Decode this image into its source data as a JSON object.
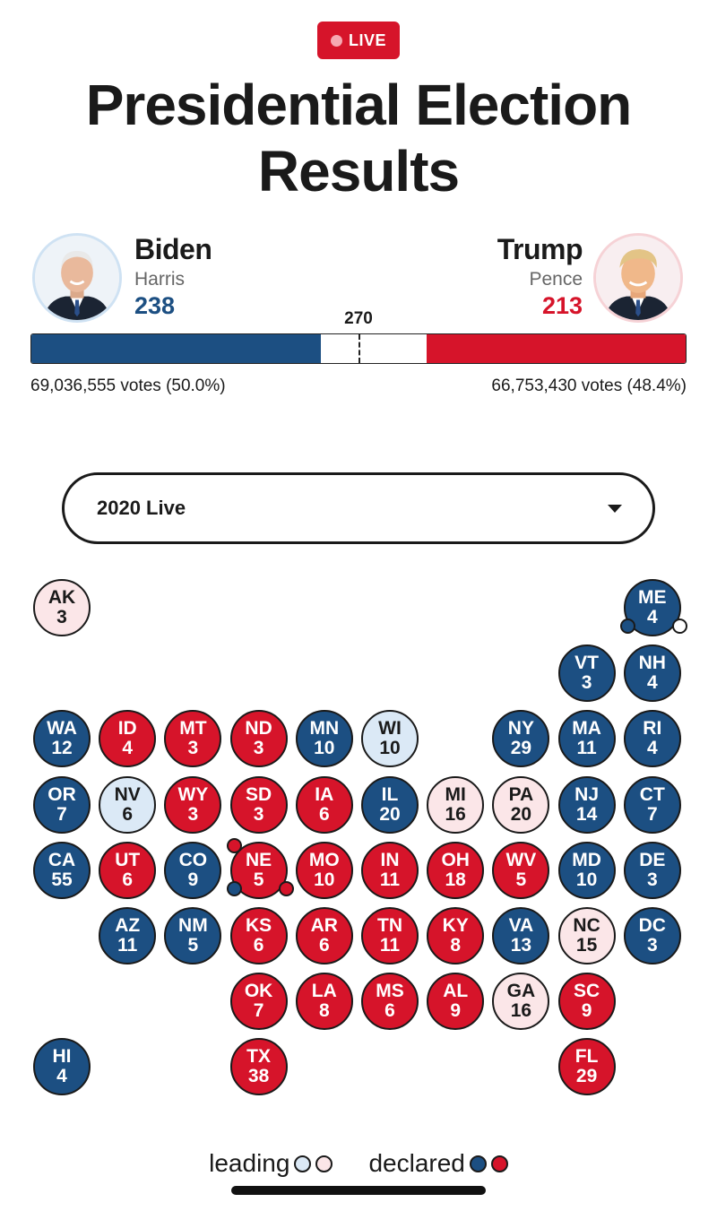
{
  "header": {
    "live_label": "LIVE",
    "title": "Presidential Election Results"
  },
  "candidates": {
    "left": {
      "name": "Biden",
      "running_mate": "Harris",
      "electoral_votes": "238",
      "popular_vote": "69,036,555 votes (50.0%)",
      "color": "#1c4f82"
    },
    "right": {
      "name": "Trump",
      "running_mate": "Pence",
      "electoral_votes": "213",
      "popular_vote": "66,753,430 votes (48.4%)",
      "color": "#d6142a"
    }
  },
  "electoral_bar": {
    "threshold_label": "270",
    "total_votes": 538,
    "left_value": 238,
    "right_value": 213
  },
  "year_select": {
    "selected": "2020 Live"
  },
  "colors": {
    "declared_blue": "#1c4f82",
    "declared_red": "#d6142a",
    "leading_blue": "#dbe9f6",
    "leading_red": "#fbe6e8"
  },
  "states": [
    {
      "abbr": "AK",
      "ev": "3",
      "status": "lightred",
      "row": 0,
      "col": 0
    },
    {
      "abbr": "ME",
      "ev": "4",
      "status": "blue",
      "row": 0,
      "col": 9,
      "split": [
        "blue",
        "white"
      ]
    },
    {
      "abbr": "VT",
      "ev": "3",
      "status": "blue",
      "row": 1,
      "col": 8
    },
    {
      "abbr": "NH",
      "ev": "4",
      "status": "blue",
      "row": 1,
      "col": 9
    },
    {
      "abbr": "WA",
      "ev": "12",
      "status": "blue",
      "row": 2,
      "col": 0
    },
    {
      "abbr": "ID",
      "ev": "4",
      "status": "red",
      "row": 2,
      "col": 1
    },
    {
      "abbr": "MT",
      "ev": "3",
      "status": "red",
      "row": 2,
      "col": 2
    },
    {
      "abbr": "ND",
      "ev": "3",
      "status": "red",
      "row": 2,
      "col": 3
    },
    {
      "abbr": "MN",
      "ev": "10",
      "status": "blue",
      "row": 2,
      "col": 4
    },
    {
      "abbr": "WI",
      "ev": "10",
      "status": "lightblue",
      "row": 2,
      "col": 5
    },
    {
      "abbr": "NY",
      "ev": "29",
      "status": "blue",
      "row": 2,
      "col": 7
    },
    {
      "abbr": "MA",
      "ev": "11",
      "status": "blue",
      "row": 2,
      "col": 8
    },
    {
      "abbr": "RI",
      "ev": "4",
      "status": "blue",
      "row": 2,
      "col": 9
    },
    {
      "abbr": "OR",
      "ev": "7",
      "status": "blue",
      "row": 3,
      "col": 0
    },
    {
      "abbr": "NV",
      "ev": "6",
      "status": "lightblue",
      "row": 3,
      "col": 1
    },
    {
      "abbr": "WY",
      "ev": "3",
      "status": "red",
      "row": 3,
      "col": 2
    },
    {
      "abbr": "SD",
      "ev": "3",
      "status": "red",
      "row": 3,
      "col": 3
    },
    {
      "abbr": "IA",
      "ev": "6",
      "status": "red",
      "row": 3,
      "col": 4
    },
    {
      "abbr": "IL",
      "ev": "20",
      "status": "blue",
      "row": 3,
      "col": 5
    },
    {
      "abbr": "MI",
      "ev": "16",
      "status": "lightred",
      "row": 3,
      "col": 6
    },
    {
      "abbr": "PA",
      "ev": "20",
      "status": "lightred",
      "row": 3,
      "col": 7
    },
    {
      "abbr": "NJ",
      "ev": "14",
      "status": "blue",
      "row": 3,
      "col": 8
    },
    {
      "abbr": "CT",
      "ev": "7",
      "status": "blue",
      "row": 3,
      "col": 9
    },
    {
      "abbr": "CA",
      "ev": "55",
      "status": "blue",
      "row": 4,
      "col": 0
    },
    {
      "abbr": "UT",
      "ev": "6",
      "status": "red",
      "row": 4,
      "col": 1
    },
    {
      "abbr": "CO",
      "ev": "9",
      "status": "blue",
      "row": 4,
      "col": 2
    },
    {
      "abbr": "NE",
      "ev": "5",
      "status": "red",
      "row": 4,
      "col": 3,
      "split": [
        "red",
        "blue",
        "red"
      ]
    },
    {
      "abbr": "MO",
      "ev": "10",
      "status": "red",
      "row": 4,
      "col": 4
    },
    {
      "abbr": "IN",
      "ev": "11",
      "status": "red",
      "row": 4,
      "col": 5
    },
    {
      "abbr": "OH",
      "ev": "18",
      "status": "red",
      "row": 4,
      "col": 6
    },
    {
      "abbr": "WV",
      "ev": "5",
      "status": "red",
      "row": 4,
      "col": 7
    },
    {
      "abbr": "MD",
      "ev": "10",
      "status": "blue",
      "row": 4,
      "col": 8
    },
    {
      "abbr": "DE",
      "ev": "3",
      "status": "blue",
      "row": 4,
      "col": 9
    },
    {
      "abbr": "AZ",
      "ev": "11",
      "status": "blue",
      "row": 5,
      "col": 1
    },
    {
      "abbr": "NM",
      "ev": "5",
      "status": "blue",
      "row": 5,
      "col": 2
    },
    {
      "abbr": "KS",
      "ev": "6",
      "status": "red",
      "row": 5,
      "col": 3
    },
    {
      "abbr": "AR",
      "ev": "6",
      "status": "red",
      "row": 5,
      "col": 4
    },
    {
      "abbr": "TN",
      "ev": "11",
      "status": "red",
      "row": 5,
      "col": 5
    },
    {
      "abbr": "KY",
      "ev": "8",
      "status": "red",
      "row": 5,
      "col": 6
    },
    {
      "abbr": "VA",
      "ev": "13",
      "status": "blue",
      "row": 5,
      "col": 7
    },
    {
      "abbr": "NC",
      "ev": "15",
      "status": "lightred",
      "row": 5,
      "col": 8
    },
    {
      "abbr": "DC",
      "ev": "3",
      "status": "blue",
      "row": 5,
      "col": 9
    },
    {
      "abbr": "OK",
      "ev": "7",
      "status": "red",
      "row": 6,
      "col": 3
    },
    {
      "abbr": "LA",
      "ev": "8",
      "status": "red",
      "row": 6,
      "col": 4
    },
    {
      "abbr": "MS",
      "ev": "6",
      "status": "red",
      "row": 6,
      "col": 5
    },
    {
      "abbr": "AL",
      "ev": "9",
      "status": "red",
      "row": 6,
      "col": 6
    },
    {
      "abbr": "GA",
      "ev": "16",
      "status": "lightred",
      "row": 6,
      "col": 7
    },
    {
      "abbr": "SC",
      "ev": "9",
      "status": "red",
      "row": 6,
      "col": 8
    },
    {
      "abbr": "HI",
      "ev": "4",
      "status": "blue",
      "row": 7,
      "col": 0
    },
    {
      "abbr": "TX",
      "ev": "38",
      "status": "red",
      "row": 7,
      "col": 3
    },
    {
      "abbr": "FL",
      "ev": "29",
      "status": "red",
      "row": 7,
      "col": 8
    }
  ],
  "legend": {
    "leading_label": "leading",
    "declared_label": "declared"
  }
}
